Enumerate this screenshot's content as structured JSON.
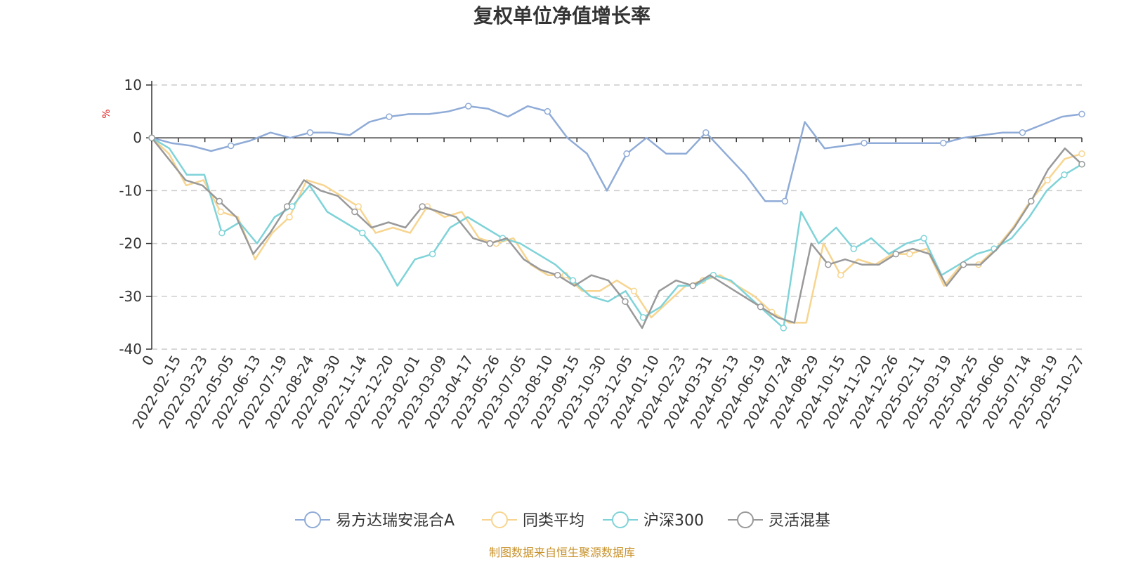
{
  "chart_data": {
    "type": "line",
    "title": "复权单位净值增长率",
    "ylabel": "%",
    "ylim": [
      -40,
      10
    ],
    "yticks": [
      10,
      0,
      -10,
      -20,
      -30,
      -40
    ],
    "x_tick_labels": [
      "0",
      "2022-02-15",
      "2022-03-23",
      "2022-05-05",
      "2022-06-13",
      "2022-07-19",
      "2022-08-24",
      "2022-09-30",
      "2022-11-14",
      "2022-12-20",
      "2023-02-01",
      "2023-03-09",
      "2023-04-17",
      "2023-05-26",
      "2023-07-05",
      "2023-08-10",
      "2023-09-15",
      "2023-10-30",
      "2023-12-05",
      "2024-01-10",
      "2024-02-23",
      "2024-03-31",
      "2024-05-13",
      "2024-06-19",
      "2024-07-24",
      "2024-08-29",
      "2024-10-15",
      "2024-11-20",
      "2024-12-26",
      "2025-02-11",
      "2025-03-19",
      "2025-04-25",
      "2025-06-06",
      "2025-07-14",
      "2025-08-19",
      "2025-10-27"
    ],
    "grid": true,
    "legend_position": "bottom",
    "series": [
      {
        "name": "易方达瑞安混合A",
        "color": "#8fabd7",
        "values": [
          0,
          -1,
          -1.5,
          -2.5,
          -1.5,
          -0.5,
          1,
          0,
          1,
          1,
          0.5,
          3,
          4,
          4.5,
          4.5,
          5,
          6,
          5.5,
          4,
          6,
          5,
          0,
          -3,
          -10,
          -3,
          0,
          -3,
          -3,
          1,
          -3,
          -7,
          -12,
          -12,
          3,
          -2,
          -1.5,
          -1,
          -1,
          -1,
          -1,
          -1,
          0,
          0.5,
          1,
          1,
          2.5,
          4,
          4.5
        ]
      },
      {
        "name": "同类平均",
        "color": "#f7d590",
        "values": [
          0,
          -3,
          -9,
          -8,
          -14,
          -15,
          -23,
          -18,
          -15,
          -8,
          -9,
          -11,
          -13,
          -18,
          -17,
          -18,
          -13,
          -15,
          -14,
          -19,
          -20,
          -19,
          -24,
          -26,
          -26,
          -29,
          -29,
          -27,
          -29,
          -34,
          -31,
          -28,
          -27,
          -26,
          -28,
          -30,
          -33,
          -35,
          -35,
          -20,
          -26,
          -23,
          -24,
          -22,
          -22,
          -21,
          -28,
          -24,
          -24,
          -21,
          -17,
          -12,
          -8,
          -4,
          -3
        ]
      },
      {
        "name": "沪深300",
        "color": "#7fd3d8",
        "values": [
          0,
          -2,
          -7,
          -7,
          -18,
          -16,
          -20,
          -15,
          -13,
          -9,
          -14,
          -16,
          -18,
          -22,
          -28,
          -23,
          -22,
          -17,
          -15,
          -17,
          -19,
          -20,
          -22,
          -24,
          -27,
          -30,
          -31,
          -29,
          -34,
          -32,
          -28,
          -28,
          -26,
          -27,
          -30,
          -33,
          -36,
          -14,
          -20,
          -17,
          -21,
          -19,
          -22,
          -20,
          -19,
          -26,
          -24,
          -22,
          -21,
          -19,
          -15,
          -10,
          -7,
          -5
        ]
      },
      {
        "name": "灵活混基",
        "color": "#999999",
        "values": [
          0,
          -4,
          -8,
          -9,
          -12,
          -15,
          -22,
          -18,
          -13,
          -8,
          -10,
          -11,
          -14,
          -17,
          -16,
          -17,
          -13,
          -14,
          -15,
          -19,
          -20,
          -19,
          -23,
          -25,
          -26,
          -28,
          -26,
          -27,
          -31,
          -36,
          -29,
          -27,
          -28,
          -26,
          -28,
          -30,
          -32,
          -34,
          -35,
          -20,
          -24,
          -23,
          -24,
          -24,
          -22,
          -21,
          -22,
          -28,
          -24,
          -24,
          -21,
          -17,
          -12,
          -6,
          -2,
          -5
        ]
      }
    ]
  },
  "legend": {
    "items": [
      "易方达瑞安混合A",
      "同类平均",
      "沪深300",
      "灵活混基"
    ]
  },
  "source": "制图数据来自恒生聚源数据库",
  "colors": {
    "axis": "#333333",
    "grid": "#cccccc",
    "unit": "#e02020",
    "source": "#c8922a"
  }
}
